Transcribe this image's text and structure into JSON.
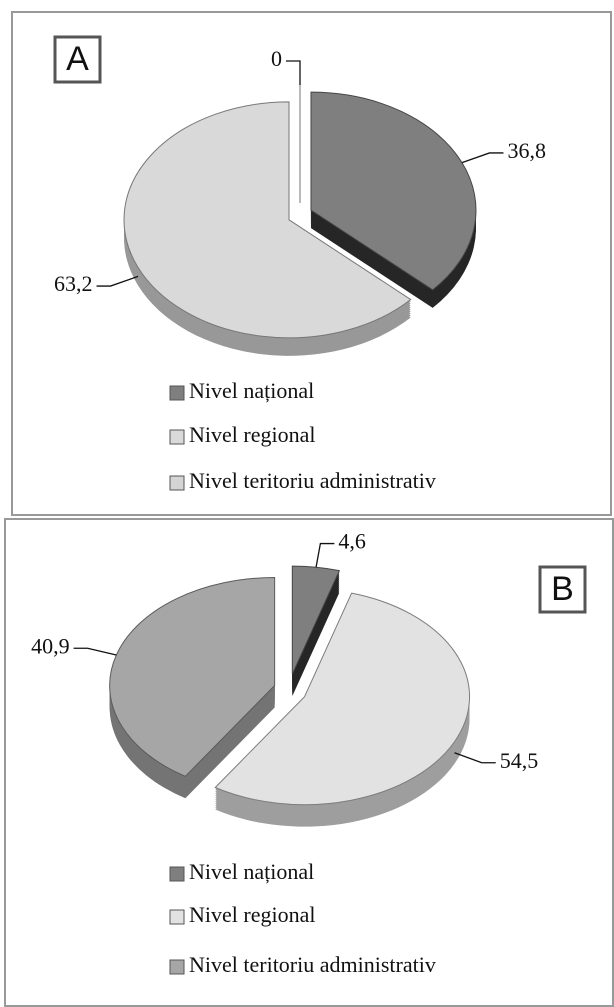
{
  "chart_data": [
    {
      "type": "pie",
      "panel": "A",
      "labels": [
        "Nivel național",
        "Nivel regional",
        "Nivel teritoriu administrativ"
      ],
      "values": [
        36.8,
        63.2,
        0
      ],
      "value_labels": [
        "36,8",
        "63,2",
        "0"
      ],
      "colors": [
        "#7f7f7f",
        "#d9d9d9",
        "#d4d4d4"
      ]
    },
    {
      "type": "pie",
      "panel": "B",
      "labels": [
        "Nivel național",
        "Nivel regional",
        "Nivel teritoriu administrativ"
      ],
      "values": [
        4.6,
        54.5,
        40.9
      ],
      "value_labels": [
        "4,6",
        "54,5",
        "40,9"
      ],
      "colors": [
        "#7f7f7f",
        "#e2e2e2",
        "#a6a6a6"
      ]
    }
  ]
}
